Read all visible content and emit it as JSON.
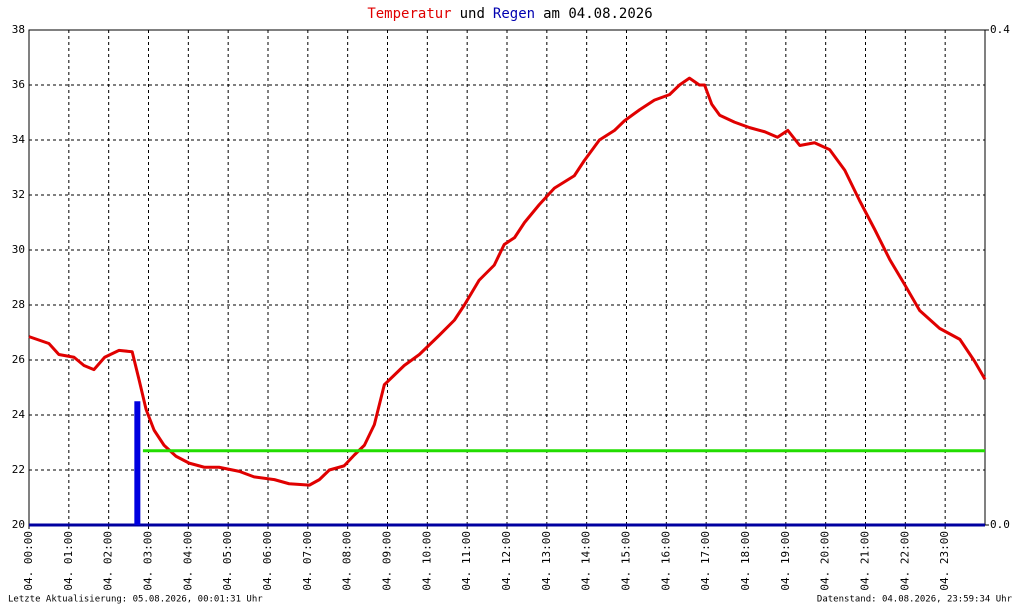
{
  "chart_data": {
    "type": "line",
    "title_parts": [
      {
        "text": "Temperatur",
        "color": "#e00000"
      },
      {
        "text": "und",
        "color": "#000000"
      },
      {
        "text": "Regen",
        "color": "#0000b0"
      },
      {
        "text": "am 04.08.2026",
        "color": "#000000"
      }
    ],
    "xlim": [
      0,
      24
    ],
    "xticks": [
      {
        "value": 0,
        "label": "04. 00:00"
      },
      {
        "value": 1,
        "label": "04. 01:00"
      },
      {
        "value": 2,
        "label": "04. 02:00"
      },
      {
        "value": 3,
        "label": "04. 03:00"
      },
      {
        "value": 4,
        "label": "04. 04:00"
      },
      {
        "value": 5,
        "label": "04. 05:00"
      },
      {
        "value": 6,
        "label": "04. 06:00"
      },
      {
        "value": 7,
        "label": "04. 07:00"
      },
      {
        "value": 8,
        "label": "04. 08:00"
      },
      {
        "value": 9,
        "label": "04. 09:00"
      },
      {
        "value": 10,
        "label": "04. 10:00"
      },
      {
        "value": 11,
        "label": "04. 11:00"
      },
      {
        "value": 12,
        "label": "04. 12:00"
      },
      {
        "value": 13,
        "label": "04. 13:00"
      },
      {
        "value": 14,
        "label": "04. 14:00"
      },
      {
        "value": 15,
        "label": "04. 15:00"
      },
      {
        "value": 16,
        "label": "04. 16:00"
      },
      {
        "value": 17,
        "label": "04. 17:00"
      },
      {
        "value": 18,
        "label": "04. 18:00"
      },
      {
        "value": 19,
        "label": "04. 19:00"
      },
      {
        "value": 20,
        "label": "04. 20:00"
      },
      {
        "value": 21,
        "label": "04. 21:00"
      },
      {
        "value": 22,
        "label": "04. 22:00"
      },
      {
        "value": 23,
        "label": "04. 23:00"
      }
    ],
    "ylim": [
      20,
      38
    ],
    "yticks": [
      20,
      22,
      24,
      26,
      28,
      30,
      32,
      34,
      36,
      38
    ],
    "y2lim": [
      0,
      0.4
    ],
    "y2ticks": [
      {
        "value": 0,
        "label": "0.0"
      },
      {
        "value": 0.4,
        "label": "0.4"
      }
    ],
    "grid": true,
    "series": [
      {
        "color": "#e00000",
        "kind": "line",
        "x": [
          0,
          0.5,
          0.75,
          1.13,
          1.38,
          1.63,
          1.9,
          2.26,
          2.59,
          2.76,
          2.94,
          3.14,
          3.39,
          3.69,
          4.02,
          4.4,
          4.77,
          5.28,
          5.65,
          6.16,
          6.53,
          7.04,
          7.29,
          7.54,
          7.91,
          8.17,
          8.42,
          8.67,
          8.92,
          9.17,
          9.42,
          9.8,
          10.3,
          10.68,
          10.93,
          11.3,
          11.68,
          11.93,
          12.19,
          12.44,
          12.81,
          13.19,
          13.69,
          13.94,
          14.32,
          14.7,
          14.95,
          15.33,
          15.7,
          16.08,
          16.33,
          16.58,
          16.83,
          16.96,
          17.14,
          17.34,
          17.71,
          18.09,
          18.47,
          18.79,
          19.05,
          19.35,
          19.72,
          20.1,
          20.48,
          20.85,
          21.23,
          21.61,
          21.98,
          22.36,
          22.86,
          23.37,
          23.74,
          24
        ],
        "values": [
          26.85,
          26.6,
          26.2,
          26.1,
          25.8,
          25.65,
          26.1,
          26.35,
          26.3,
          25.3,
          24.2,
          23.45,
          22.9,
          22.5,
          22.25,
          22.1,
          22.1,
          21.95,
          21.75,
          21.65,
          21.5,
          21.45,
          21.65,
          22.0,
          22.15,
          22.55,
          22.9,
          23.65,
          25.1,
          25.45,
          25.8,
          26.2,
          26.9,
          27.45,
          28.0,
          28.9,
          29.45,
          30.2,
          30.45,
          31.0,
          31.65,
          32.25,
          32.7,
          33.25,
          34.0,
          34.35,
          34.7,
          35.1,
          35.45,
          35.65,
          36.0,
          36.25,
          36.0,
          36.0,
          35.3,
          34.9,
          34.65,
          34.45,
          34.3,
          34.1,
          34.35,
          33.8,
          33.9,
          33.65,
          32.9,
          31.8,
          30.75,
          29.65,
          28.75,
          27.8,
          27.15,
          26.75,
          25.95,
          25.3
        ]
      },
      {
        "color": "#22dd00",
        "kind": "line",
        "x": [
          2.86,
          24
        ],
        "values": [
          22.7,
          22.7
        ]
      },
      {
        "color": "#0000e0",
        "kind": "bar",
        "axis": "y2",
        "x": [
          2.72
        ],
        "values": [
          0.1
        ]
      }
    ],
    "footer_left": "Letzte Aktualisierung: 05.08.2026, 00:01:31 Uhr",
    "footer_right": "Datenstand: 04.08.2026, 23:59:34 Uhr"
  }
}
